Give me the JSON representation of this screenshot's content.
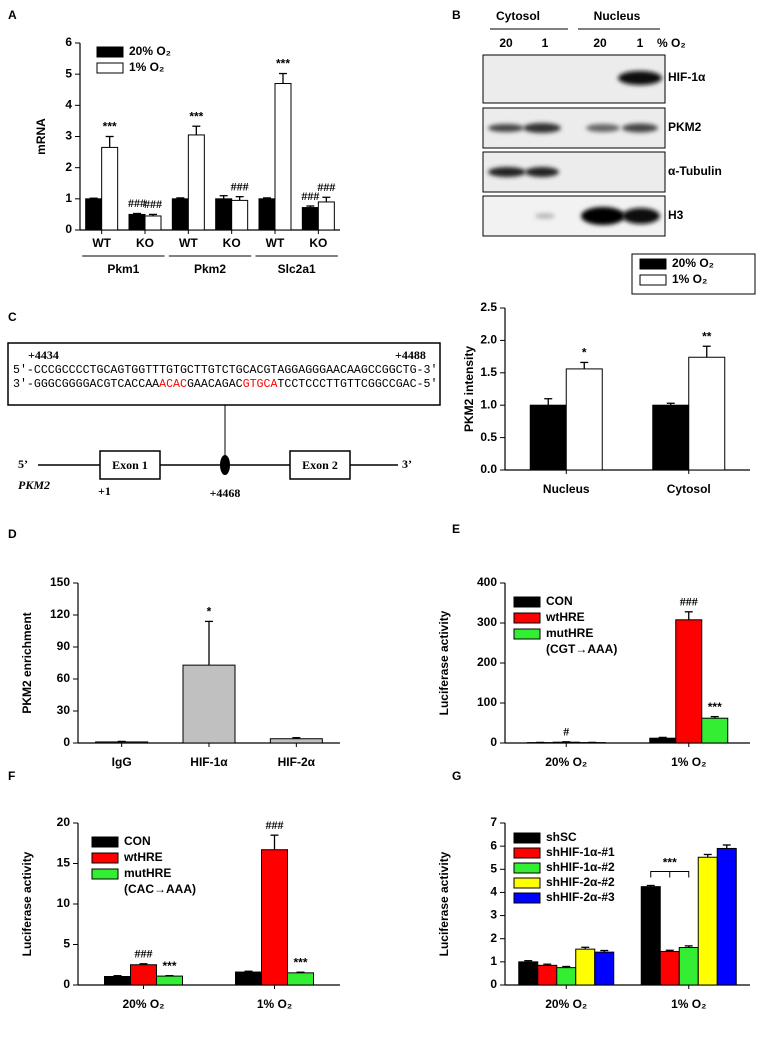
{
  "chart_data": [
    {
      "type": "bar",
      "panel": "A",
      "ylabel": "mRNA",
      "categories": [
        "WT",
        "KO",
        "WT",
        "KO",
        "WT",
        "KO"
      ],
      "groups": [
        "Pkm1",
        "Pkm2",
        "Slc2a1"
      ],
      "series": [
        {
          "name": "20% O₂",
          "color": "#000000",
          "values": [
            1,
            0.5,
            1,
            1.0,
            1,
            0.72
          ],
          "errors": [
            0.02,
            0.03,
            0.03,
            0.1,
            0.03,
            0.05
          ],
          "significance": [
            null,
            "###",
            null,
            null,
            null,
            "###"
          ]
        },
        {
          "name": "1% O₂",
          "color": "#ffffff",
          "values": [
            2.65,
            0.45,
            3.05,
            0.95,
            4.7,
            0.9
          ],
          "errors": [
            0.35,
            0.05,
            0.28,
            0.12,
            0.32,
            0.15
          ],
          "significance": [
            "***",
            "###",
            "***",
            "###",
            "***",
            "###"
          ]
        }
      ],
      "ylim": [
        0,
        6
      ],
      "yticks": [
        0,
        1,
        2,
        3,
        4,
        5,
        6
      ],
      "legend": "upper left"
    },
    {
      "type": "bar",
      "ylabel": "PKM2 intensity",
      "categories": [
        "Nucleus",
        "Cytosol"
      ],
      "series": [
        {
          "name": "20% O₂",
          "color": "#000000",
          "values": [
            1.0,
            1.0
          ],
          "errors": [
            0.1,
            0.03
          ]
        },
        {
          "name": "1% O₂",
          "color": "#ffffff",
          "values": [
            1.56,
            1.74
          ],
          "errors": [
            0.1,
            0.17
          ],
          "significance": [
            "*",
            "**"
          ]
        }
      ],
      "ylim": [
        0,
        2.5
      ],
      "yticks": [
        {
          "value": 0,
          "label": "0.0"
        },
        0.5,
        {
          "value": 1,
          "label": "1.0"
        },
        1.5,
        {
          "value": 2,
          "label": "2.0"
        },
        2.5
      ],
      "legend": "outside top right"
    },
    {
      "type": "bar",
      "panel": "D",
      "ylabel": "PKM2 enrichment",
      "categories": [
        "IgG",
        "HIF-1α",
        "HIF-2α"
      ],
      "series": [
        {
          "color": "#c0c0c0",
          "values": [
            1,
            73,
            4
          ],
          "errors": [
            0.5,
            41,
            1
          ],
          "significance": [
            null,
            "*",
            null
          ]
        }
      ],
      "ylim": [
        0,
        150
      ],
      "yticks": [
        0,
        30,
        60,
        90,
        120,
        150
      ]
    },
    {
      "type": "bar",
      "panel": "E",
      "ylabel": "Luciferase activity",
      "categories": [
        "20% O₂",
        "1% O₂"
      ],
      "series": [
        {
          "name": "CON",
          "color": "#000000",
          "values": [
            1,
            12
          ],
          "errors": [
            0.5,
            2
          ]
        },
        {
          "name": "wtHRE",
          "color": "#ff0000",
          "values": [
            2,
            308
          ],
          "errors": [
            1,
            20
          ],
          "significance": [
            "#",
            "###"
          ]
        },
        {
          "name": "mutHRE",
          "color": "#33ee33",
          "values": [
            1,
            62
          ],
          "errors": [
            0.5,
            4
          ],
          "significance": [
            null,
            "***"
          ]
        }
      ],
      "legend_note": "(CGT→AAA)",
      "ylim": [
        0,
        400
      ],
      "yticks": [
        0,
        100,
        200,
        300,
        400
      ],
      "legend": "upper left"
    },
    {
      "type": "bar",
      "panel": "F",
      "ylabel": "Luciferase activity",
      "categories": [
        "20% O₂",
        "1% O₂"
      ],
      "series": [
        {
          "name": "CON",
          "color": "#000000",
          "values": [
            1.05,
            1.6
          ],
          "errors": [
            0.1,
            0.1
          ]
        },
        {
          "name": "wtHRE",
          "color": "#ff0000",
          "values": [
            2.5,
            16.7
          ],
          "errors": [
            0.12,
            1.8
          ],
          "significance": [
            "###",
            "###"
          ]
        },
        {
          "name": "mutHRE",
          "color": "#33ee33",
          "values": [
            1.1,
            1.5
          ],
          "errors": [
            0.05,
            0.08
          ],
          "significance": [
            "***",
            "***"
          ]
        }
      ],
      "legend_note": "(CAC→AAA)",
      "ylim": [
        0,
        20
      ],
      "yticks": [
        0,
        5,
        10,
        15,
        20
      ],
      "legend": "upper left"
    },
    {
      "type": "bar",
      "panel": "G",
      "ylabel": "Luciferase activity",
      "categories": [
        "20% O₂",
        "1% O₂"
      ],
      "series": [
        {
          "name": "shSC",
          "color": "#000000",
          "values": [
            1.0,
            4.25
          ],
          "errors": [
            0.05,
            0.05
          ]
        },
        {
          "name": "shHIF-1α-#1",
          "color": "#ff0000",
          "values": [
            0.85,
            1.45
          ],
          "errors": [
            0.05,
            0.05
          ]
        },
        {
          "name": "shHIF-1α-#2",
          "color": "#33ee33",
          "values": [
            0.75,
            1.62
          ],
          "errors": [
            0.05,
            0.07
          ]
        },
        {
          "name": "shHIF-2α-#2",
          "color": "#ffff00",
          "values": [
            1.55,
            5.52
          ],
          "errors": [
            0.08,
            0.12
          ]
        },
        {
          "name": "shHIF-2α-#3",
          "color": "#0000ff",
          "values": [
            1.42,
            5.9
          ],
          "errors": [
            0.07,
            0.15
          ]
        }
      ],
      "bracket_label": "***",
      "ylim": [
        0,
        7
      ],
      "yticks": [
        0,
        1,
        2,
        3,
        4,
        5,
        6,
        7
      ],
      "legend": "upper left"
    }
  ],
  "blot": {
    "panel": "B",
    "fractions": [
      "Cytosol",
      "Nucleus"
    ],
    "lanes": [
      "20",
      "1",
      "20",
      "1"
    ],
    "lane_unit": "% O₂",
    "proteins": [
      "HIF-1α",
      "PKM2",
      "α-Tubulin",
      "H3"
    ]
  },
  "diagram": {
    "panel": "C",
    "start": "+4434",
    "end": "+4488",
    "top_strand": "5′-CCCGCCCCTGCAGTGGTTTGTGCTTGTCTGCACGTAGGAGGGAACAAGCCGGCTG-3′",
    "bottom_strand": [
      {
        "text": "3′-GGGCGGGGACGTCACCAA",
        "color": "#000000"
      },
      {
        "text": "ACAC",
        "color": "#ff0000"
      },
      {
        "text": "GAACAGAC",
        "color": "#000000"
      },
      {
        "text": "GTGCA",
        "color": "#ff0000"
      },
      {
        "text": "TCCTCCCTTGTTCGGCCGAC-5′",
        "color": "#000000"
      }
    ],
    "five_prime": "5’",
    "three_prime": "3’",
    "exon1": "Exon 1",
    "exon2": "Exon 2",
    "gene": "PKM2",
    "tss": "+1",
    "site": "+4468"
  }
}
